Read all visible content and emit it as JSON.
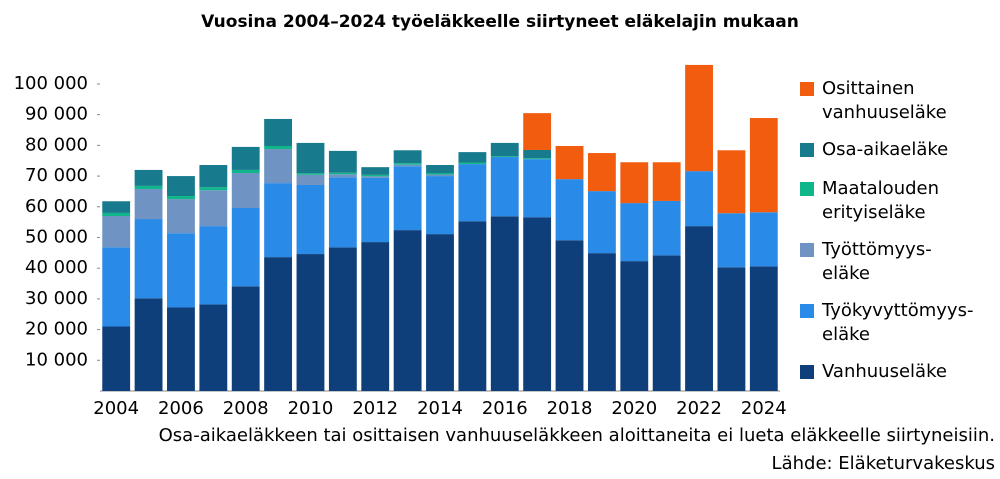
{
  "chart_data": {
    "type": "stacked_bar",
    "title": "Vuosina 2004–2024 työeläkkeelle siirtyneet eläkelajin mukaan",
    "note": "Osa-aikaeläkkeen tai osittaisen vanhuuseläkkeen aloittaneita ei lueta eläkkeelle siirtyneisiin.",
    "source": "Lähde: Eläketurvakeskus",
    "categories": [
      "2004",
      null,
      "2006",
      null,
      "2008",
      null,
      "2010",
      null,
      "2012",
      null,
      "2014",
      null,
      "2016",
      null,
      "2018",
      null,
      "2020",
      null,
      "2022",
      null,
      "2024"
    ],
    "series": [
      {
        "name": "Vanhuuseläke",
        "color": "#0e3f7a",
        "values": [
          21000,
          30200,
          27200,
          28200,
          34100,
          43600,
          44600,
          46800,
          48500,
          52400,
          51100,
          55300,
          56900,
          56600,
          49100,
          44900,
          42300,
          44200,
          53700,
          40300,
          40600
        ]
      },
      {
        "name": "Työkyvyttömyys-\neläke",
        "color": "#2a8ae8",
        "values": [
          25800,
          25800,
          24200,
          25500,
          25500,
          24100,
          22500,
          22800,
          20900,
          20800,
          18900,
          18600,
          19300,
          18900,
          19900,
          20200,
          18900,
          17700,
          17900,
          17600,
          17600
        ]
      },
      {
        "name": "Työttömyys-\neläke",
        "color": "#6f93c2",
        "values": [
          10200,
          9800,
          11100,
          11700,
          11400,
          11100,
          3300,
          1000,
          500,
          500,
          500,
          0,
          0,
          0,
          0,
          0,
          0,
          0,
          0,
          0,
          0
        ]
      },
      {
        "name": "Maatalouden\nerityiseläke",
        "color": "#0fb68a",
        "values": [
          1000,
          1000,
          1000,
          1000,
          1000,
          1000,
          500,
          500,
          500,
          500,
          500,
          500,
          300,
          300,
          0,
          0,
          0,
          0,
          0,
          0,
          0
        ]
      },
      {
        "name": "Osa-aikaeläke",
        "color": "#187a8d",
        "values": [
          3800,
          5200,
          6500,
          7200,
          7500,
          8800,
          9900,
          7100,
          2500,
          4200,
          2600,
          3400,
          4300,
          2700,
          0,
          0,
          0,
          0,
          0,
          0,
          0
        ]
      },
      {
        "name": "Osittainen\nvanhuuseläke",
        "color": "#f25c0f",
        "values": [
          0,
          0,
          0,
          0,
          0,
          0,
          0,
          0,
          0,
          0,
          0,
          0,
          0,
          12000,
          10800,
          12400,
          13300,
          12600,
          34600,
          20500,
          30700
        ]
      }
    ],
    "ylim": [
      0,
      106500
    ],
    "yticks": [
      {
        "value": 10000,
        "label": "10 000"
      },
      {
        "value": 20000,
        "label": "20 000"
      },
      {
        "value": 30000,
        "label": "30 000"
      },
      {
        "value": 40000,
        "label": "40 000"
      },
      {
        "value": 50000,
        "label": "50 000"
      },
      {
        "value": 60000,
        "label": "60 000"
      },
      {
        "value": 70000,
        "label": "70 000"
      },
      {
        "value": 80000,
        "label": "80 000"
      },
      {
        "value": 90000,
        "label": "90 000"
      },
      {
        "value": 100000,
        "label": "100 000"
      }
    ],
    "grid": false,
    "legend": "right"
  }
}
